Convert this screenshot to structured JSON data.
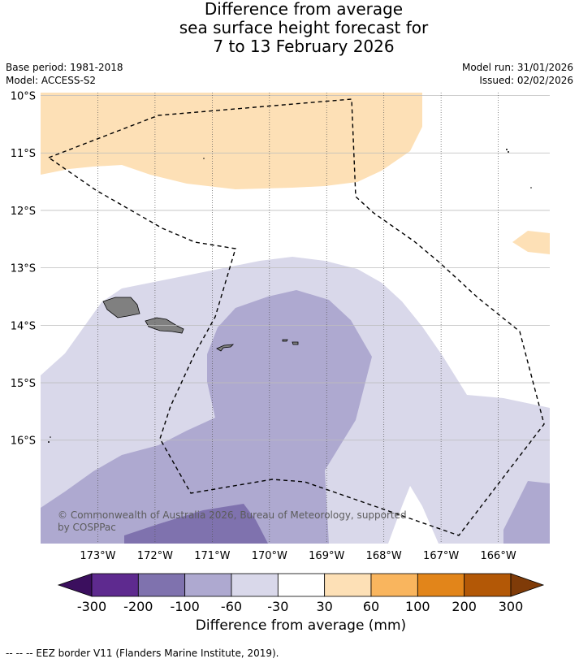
{
  "title": {
    "line1": "Difference from average",
    "line2": "sea surface height forecast for",
    "line3": "7 to 13 February 2026"
  },
  "meta": {
    "base_period": "Base period: 1981-2018",
    "model": "Model: ACCESS-S2",
    "model_run": "Model run: 31/01/2026",
    "issued": "Issued: 02/02/2026"
  },
  "map": {
    "lon_range": [
      -174,
      -165.1
    ],
    "lat_range": [
      -17.8,
      -9.95
    ],
    "lon_ticks": [
      {
        "value": -173,
        "label": "173°W"
      },
      {
        "value": -172,
        "label": "172°W"
      },
      {
        "value": -171,
        "label": "171°W"
      },
      {
        "value": -170,
        "label": "170°W"
      },
      {
        "value": -169,
        "label": "169°W"
      },
      {
        "value": -168,
        "label": "168°W"
      },
      {
        "value": -167,
        "label": "167°W"
      },
      {
        "value": -166,
        "label": "166°W"
      }
    ],
    "lat_ticks": [
      {
        "value": -10,
        "label": "10°S"
      },
      {
        "value": -11,
        "label": "11°S"
      },
      {
        "value": -12,
        "label": "12°S"
      },
      {
        "value": -13,
        "label": "13°S"
      },
      {
        "value": -14,
        "label": "14°S"
      },
      {
        "value": -15,
        "label": "15°S"
      },
      {
        "value": -16,
        "label": "16°S"
      }
    ],
    "copyright_line1": "© Commonwealth of Australia 2026, Bureau of Meteorology, supported",
    "copyright_line2": "by COSPPac"
  },
  "colorbar": {
    "title": "Difference from average (mm)",
    "tick_labels": [
      "-300",
      "-200",
      "-100",
      "-60",
      "-30",
      "30",
      "60",
      "100",
      "200",
      "300"
    ],
    "colors": {
      "below_min": "#3b0f5e",
      "bins": [
        "#5e2a8f",
        "#7f72ae",
        "#aea9d0",
        "#d9d8ea",
        "#ffffff",
        "#fde0b6",
        "#f9b55e",
        "#e2851a",
        "#b35806"
      ],
      "above_max": "#7f3b08"
    }
  },
  "footnote": "--  --  -- EEZ border V11 (Flanders Marine Institute, 2019)."
}
